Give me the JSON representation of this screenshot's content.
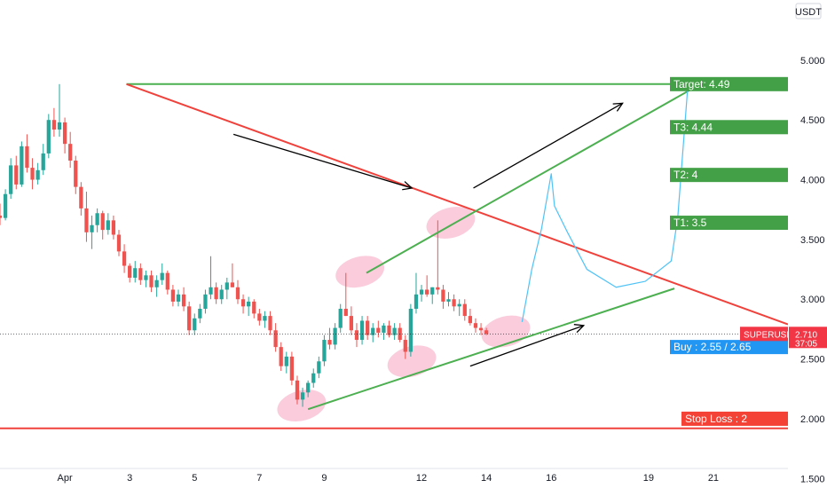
{
  "chart_data": {
    "type": "candlestick",
    "symbol": "SUPERUSDT",
    "currency": "USDT",
    "last_price": "2.710",
    "countdown": "37:05",
    "ylim": [
      1.45,
      5.4
    ],
    "y_ticks": [
      "5.000",
      "4.500",
      "4.000",
      "3.500",
      "3.000",
      "2.500",
      "2.000",
      "1.500"
    ],
    "y_tick_values": [
      5.0,
      4.5,
      4.0,
      3.5,
      3.0,
      2.5,
      2.0,
      1.5
    ],
    "x_ticks": [
      "Apr",
      "3",
      "5",
      "7",
      "9",
      "12",
      "14",
      "16",
      "19",
      "21"
    ],
    "x_tick_days": [
      1,
      3,
      5,
      7,
      9,
      12,
      14,
      16,
      19,
      21
    ],
    "xlim_days": [
      -1,
      23.3
    ],
    "candle_interval_hours": 4,
    "candles_start_day": -1,
    "candles": [
      [
        3.7,
        3.8,
        3.62,
        3.68
      ],
      [
        3.68,
        3.92,
        3.66,
        3.88
      ],
      [
        3.88,
        4.18,
        3.84,
        4.12
      ],
      [
        4.12,
        4.2,
        3.92,
        3.96
      ],
      [
        3.96,
        4.32,
        3.94,
        4.28
      ],
      [
        4.28,
        4.38,
        4.06,
        4.1
      ],
      [
        4.1,
        4.18,
        3.92,
        4.0
      ],
      [
        4.0,
        4.14,
        3.96,
        4.08
      ],
      [
        4.08,
        4.3,
        4.04,
        4.22
      ],
      [
        4.22,
        4.55,
        4.18,
        4.5
      ],
      [
        4.5,
        4.6,
        4.36,
        4.42
      ],
      [
        4.42,
        4.8,
        4.36,
        4.48
      ],
      [
        4.48,
        4.52,
        4.22,
        4.3
      ],
      [
        4.3,
        4.4,
        4.1,
        4.16
      ],
      [
        4.16,
        4.2,
        3.88,
        3.94
      ],
      [
        3.94,
        3.98,
        3.7,
        3.76
      ],
      [
        3.76,
        3.9,
        3.48,
        3.56
      ],
      [
        3.56,
        3.7,
        3.42,
        3.62
      ],
      [
        3.62,
        3.76,
        3.56,
        3.72
      ],
      [
        3.72,
        3.74,
        3.5,
        3.58
      ],
      [
        3.58,
        3.72,
        3.54,
        3.66
      ],
      [
        3.66,
        3.7,
        3.5,
        3.54
      ],
      [
        3.54,
        3.58,
        3.36,
        3.4
      ],
      [
        3.4,
        3.46,
        3.22,
        3.28
      ],
      [
        3.28,
        3.3,
        3.14,
        3.18
      ],
      [
        3.18,
        3.32,
        3.14,
        3.26
      ],
      [
        3.26,
        3.3,
        3.12,
        3.16
      ],
      [
        3.16,
        3.24,
        3.1,
        3.2
      ],
      [
        3.2,
        3.24,
        3.06,
        3.1
      ],
      [
        3.1,
        3.2,
        3.02,
        3.16
      ],
      [
        3.16,
        3.3,
        3.12,
        3.22
      ],
      [
        3.22,
        3.24,
        3.04,
        3.08
      ],
      [
        3.08,
        3.12,
        2.94,
        2.98
      ],
      [
        2.98,
        3.08,
        2.94,
        3.04
      ],
      [
        3.04,
        3.1,
        2.9,
        2.94
      ],
      [
        2.94,
        2.98,
        2.7,
        2.74
      ],
      [
        2.74,
        2.88,
        2.7,
        2.84
      ],
      [
        2.84,
        2.96,
        2.8,
        2.92
      ],
      [
        2.92,
        3.08,
        2.88,
        3.04
      ],
      [
        3.04,
        3.36,
        3.0,
        3.1
      ],
      [
        3.1,
        3.14,
        2.96,
        3.0
      ],
      [
        3.0,
        3.12,
        2.96,
        3.08
      ],
      [
        3.08,
        3.18,
        3.0,
        3.14
      ],
      [
        3.14,
        3.3,
        3.1,
        3.1
      ],
      [
        3.1,
        3.16,
        2.96,
        3.0
      ],
      [
        3.0,
        3.04,
        2.88,
        2.94
      ],
      [
        2.94,
        3.02,
        2.86,
        2.98
      ],
      [
        2.98,
        3.0,
        2.84,
        2.88
      ],
      [
        2.88,
        2.92,
        2.78,
        2.82
      ],
      [
        2.82,
        2.9,
        2.76,
        2.86
      ],
      [
        2.86,
        2.9,
        2.7,
        2.74
      ],
      [
        2.74,
        2.8,
        2.56,
        2.6
      ],
      [
        2.6,
        2.64,
        2.4,
        2.44
      ],
      [
        2.44,
        2.56,
        2.38,
        2.52
      ],
      [
        2.52,
        2.56,
        2.28,
        2.32
      ],
      [
        2.32,
        2.36,
        2.12,
        2.16
      ],
      [
        2.16,
        2.26,
        2.1,
        2.22
      ],
      [
        2.22,
        2.32,
        2.18,
        2.3
      ],
      [
        2.3,
        2.42,
        2.26,
        2.38
      ],
      [
        2.38,
        2.52,
        2.34,
        2.48
      ],
      [
        2.48,
        2.7,
        2.44,
        2.66
      ],
      [
        2.66,
        2.76,
        2.58,
        2.62
      ],
      [
        2.62,
        2.8,
        2.58,
        2.76
      ],
      [
        2.76,
        2.96,
        2.72,
        2.92
      ],
      [
        2.92,
        3.22,
        2.86,
        2.86
      ],
      [
        2.86,
        2.94,
        2.7,
        2.74
      ],
      [
        2.74,
        2.8,
        2.6,
        2.66
      ],
      [
        2.66,
        2.86,
        2.62,
        2.82
      ],
      [
        2.82,
        2.86,
        2.66,
        2.7
      ],
      [
        2.7,
        2.8,
        2.64,
        2.76
      ],
      [
        2.76,
        2.82,
        2.68,
        2.72
      ],
      [
        2.72,
        2.8,
        2.66,
        2.78
      ],
      [
        2.78,
        2.82,
        2.68,
        2.7
      ],
      [
        2.7,
        2.8,
        2.66,
        2.76
      ],
      [
        2.76,
        2.8,
        2.64,
        2.66
      ],
      [
        2.66,
        2.7,
        2.5,
        2.56
      ],
      [
        2.56,
        2.96,
        2.52,
        2.92
      ],
      [
        2.92,
        3.22,
        2.88,
        3.04
      ],
      [
        3.04,
        3.12,
        2.98,
        3.08
      ],
      [
        3.08,
        3.2,
        3.02,
        3.04
      ],
      [
        3.04,
        3.1,
        2.96,
        3.1
      ],
      [
        3.1,
        3.66,
        3.04,
        3.08
      ],
      [
        3.08,
        3.12,
        2.92,
        2.98
      ],
      [
        2.98,
        3.06,
        2.94,
        3.0
      ],
      [
        3.0,
        3.04,
        2.9,
        2.94
      ],
      [
        2.94,
        3.0,
        2.86,
        2.96
      ],
      [
        2.96,
        3.0,
        2.82,
        2.86
      ],
      [
        2.86,
        2.92,
        2.78,
        2.8
      ],
      [
        2.8,
        2.84,
        2.72,
        2.76
      ],
      [
        2.76,
        2.8,
        2.7,
        2.74
      ],
      [
        2.74,
        2.76,
        2.7,
        2.71
      ]
    ],
    "annotations": {
      "target": {
        "label": "Target: 4.49",
        "price": 4.8
      },
      "t3": {
        "label": "T3: 4.44",
        "price": 4.44
      },
      "t2": {
        "label": "T2: 4",
        "price": 4.04
      },
      "t1": {
        "label": "T1: 3.5",
        "price": 3.64
      },
      "buy": {
        "label": "Buy :  2.55 / 2.65",
        "price": 2.6
      },
      "stop_loss": {
        "label": "Stop Loss : 2",
        "price": 2.0
      }
    },
    "lines": {
      "stop_line": {
        "price": 1.92
      },
      "top_horizontal": {
        "from": [
          2.9,
          4.8
        ],
        "to": [
          23.3,
          4.8
        ]
      },
      "red_trendline": {
        "from": [
          2.9,
          4.8
        ],
        "to": [
          23.3,
          2.79
        ]
      },
      "upper_channel": {
        "from": [
          10.3,
          3.22
        ],
        "to": [
          20.6,
          4.8
        ]
      },
      "lower_channel": {
        "from": [
          8.5,
          2.08
        ],
        "to": [
          19.8,
          3.09
        ]
      }
    },
    "arrows": [
      {
        "from": [
          6.2,
          4.38
        ],
        "to": [
          11.7,
          3.93
        ]
      },
      {
        "from": [
          13.6,
          3.93
        ],
        "to": [
          18.2,
          4.64
        ]
      },
      {
        "from": [
          13.5,
          2.44
        ],
        "to": [
          17.0,
          2.78
        ]
      },
      {
        "from": [
          13.5,
          4.4
        ],
        "to": [
          17.7,
          3.0
        ]
      }
    ],
    "projection_path": [
      [
        15.1,
        2.81
      ],
      [
        15.4,
        3.25
      ],
      [
        15.7,
        3.59
      ],
      [
        16.0,
        4.05
      ],
      [
        16.1,
        3.78
      ],
      [
        16.5,
        3.56
      ],
      [
        17.1,
        3.25
      ],
      [
        18.0,
        3.1
      ],
      [
        18.9,
        3.15
      ],
      [
        19.7,
        3.32
      ],
      [
        19.9,
        3.68
      ],
      [
        20.2,
        4.74
      ],
      [
        20.2,
        4.79
      ]
    ],
    "highlight_circles": [
      {
        "center": [
          10.1,
          3.23
        ]
      },
      {
        "center": [
          12.9,
          3.64
        ]
      },
      {
        "center": [
          8.3,
          2.11
        ]
      },
      {
        "center": [
          11.7,
          2.48
        ]
      },
      {
        "center": [
          14.6,
          2.73
        ]
      }
    ],
    "colors": {
      "up": "#26a69a",
      "down": "#ef5350",
      "green_line": "#4caf50",
      "green_box": "#43a047",
      "red_line": "#f0423c",
      "buy_box": "#2196f3",
      "stop_box": "#f44336",
      "projection": "#4fc3f7",
      "highlight": "#f8bbd0",
      "axis_text": "#131722",
      "price_label": "#f23645"
    }
  }
}
